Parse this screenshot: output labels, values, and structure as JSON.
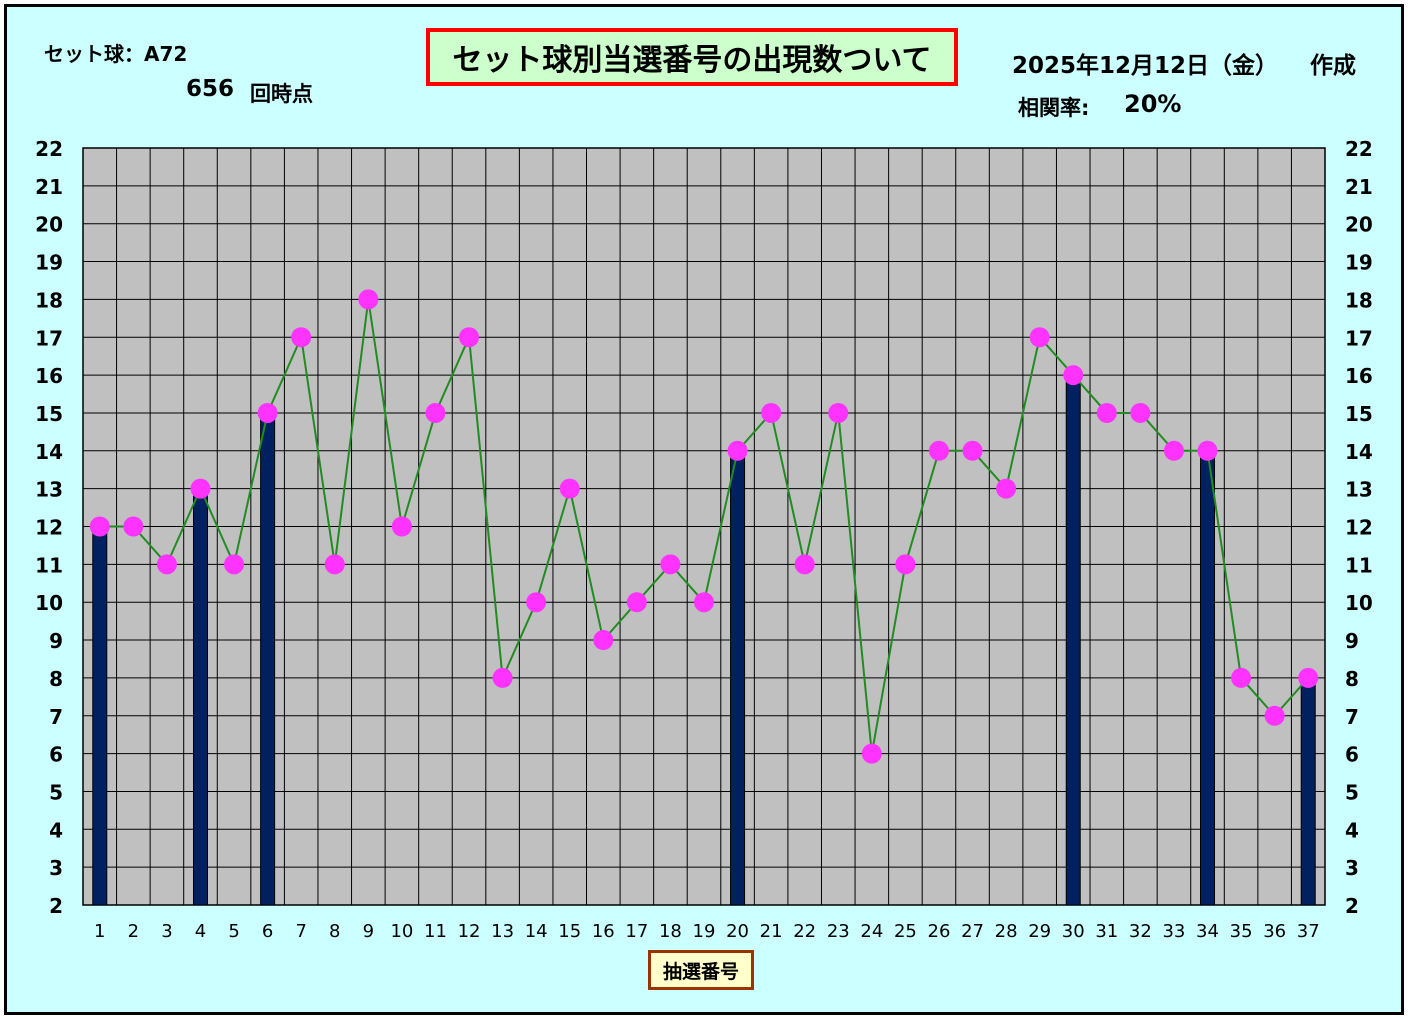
{
  "header": {
    "set_ball": "セット球：A72",
    "draws": "656",
    "draws_suffix": "回時点",
    "date": "2025年12月12日（金）",
    "created": "作成",
    "corr_label": "相関率:",
    "corr_value": "20%"
  },
  "colors": {
    "background": "#ccffff",
    "plot_area": "#c0c0c0",
    "bar": "#002060",
    "line": "#228b22",
    "marker": "#ff33ff",
    "title_border": "#ff0000",
    "title_fill": "#ccffcc"
  },
  "chart_data": {
    "type": "bar+line",
    "title": "セット球別当選番号の出現数ついて",
    "xlabel": "抽選番号",
    "ylabel": "",
    "ylim": [
      2,
      22
    ],
    "yticks": [
      2,
      3,
      4,
      5,
      6,
      7,
      8,
      9,
      10,
      11,
      12,
      13,
      14,
      15,
      16,
      17,
      18,
      19,
      20,
      21,
      22
    ],
    "grid": true,
    "categories": [
      "1",
      "2",
      "3",
      "4",
      "5",
      "6",
      "7",
      "8",
      "9",
      "10",
      "11",
      "12",
      "13",
      "14",
      "15",
      "16",
      "17",
      "18",
      "19",
      "20",
      "21",
      "22",
      "23",
      "24",
      "25",
      "26",
      "27",
      "28",
      "29",
      "30",
      "31",
      "32",
      "33",
      "34",
      "35",
      "36",
      "37"
    ],
    "series": [
      {
        "type": "bar",
        "values": [
          12,
          null,
          null,
          13,
          null,
          15,
          null,
          null,
          null,
          null,
          null,
          null,
          null,
          null,
          null,
          null,
          null,
          null,
          null,
          14,
          null,
          null,
          null,
          null,
          null,
          null,
          null,
          null,
          null,
          16,
          null,
          null,
          null,
          14,
          null,
          null,
          8
        ]
      },
      {
        "type": "line",
        "values": [
          12,
          12,
          11,
          13,
          11,
          15,
          17,
          11,
          18,
          12,
          15,
          17,
          8,
          10,
          13,
          9,
          10,
          11,
          10,
          14,
          15,
          11,
          15,
          6,
          11,
          14,
          14,
          13,
          17,
          16,
          15,
          15,
          14,
          14,
          8,
          7,
          8
        ]
      }
    ]
  }
}
